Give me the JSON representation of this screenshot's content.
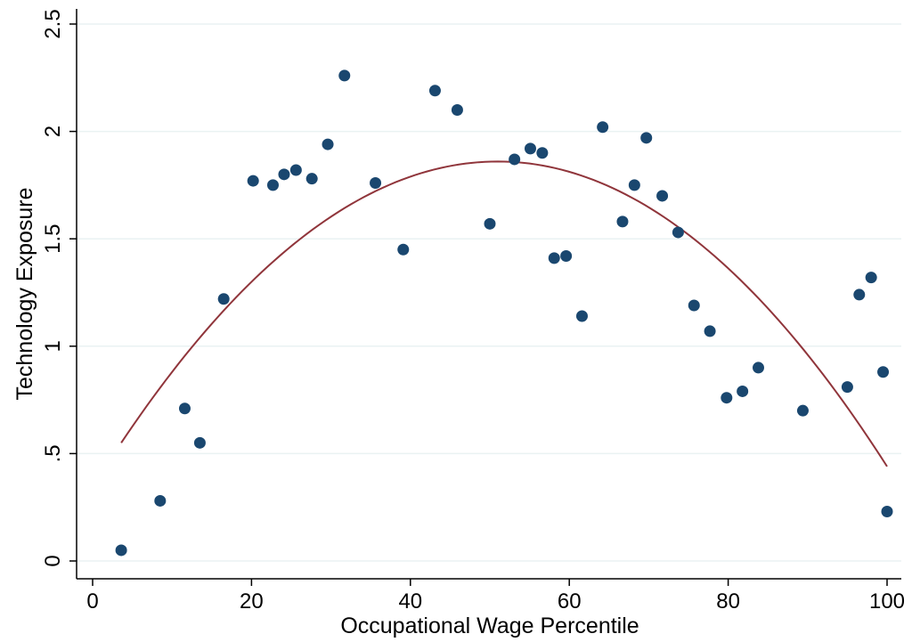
{
  "chart_data": {
    "type": "scatter",
    "title": "",
    "xlabel": "Occupational Wage Percentile",
    "ylabel": "Technology Exposure",
    "xlim": [
      0,
      100
    ],
    "ylim": [
      0,
      2.5
    ],
    "x_ticks": [
      0,
      20,
      40,
      60,
      80,
      100
    ],
    "x_tick_labels": [
      "0",
      "20",
      "40",
      "60",
      "80",
      "100"
    ],
    "y_ticks": [
      0,
      0.5,
      1,
      1.5,
      2,
      2.5
    ],
    "y_tick_labels": [
      "0",
      ".5",
      "1",
      "1.5",
      "2",
      "2.5"
    ],
    "grid": "horizontal",
    "legend": "none",
    "colors": {
      "points": "#1a476f",
      "fit_line": "#90353b",
      "grid": "#eaf2f3"
    },
    "points": [
      {
        "x": 3.6,
        "y": 0.05
      },
      {
        "x": 8.5,
        "y": 0.28
      },
      {
        "x": 11.6,
        "y": 0.71
      },
      {
        "x": 13.5,
        "y": 0.55
      },
      {
        "x": 16.5,
        "y": 1.22
      },
      {
        "x": 20.2,
        "y": 1.77
      },
      {
        "x": 22.7,
        "y": 1.75
      },
      {
        "x": 24.1,
        "y": 1.8
      },
      {
        "x": 25.6,
        "y": 1.82
      },
      {
        "x": 27.6,
        "y": 1.78
      },
      {
        "x": 29.6,
        "y": 1.94
      },
      {
        "x": 31.7,
        "y": 2.26
      },
      {
        "x": 35.6,
        "y": 1.76
      },
      {
        "x": 39.1,
        "y": 1.45
      },
      {
        "x": 43.1,
        "y": 2.19
      },
      {
        "x": 45.9,
        "y": 2.1
      },
      {
        "x": 50.0,
        "y": 1.57
      },
      {
        "x": 53.1,
        "y": 1.87
      },
      {
        "x": 55.1,
        "y": 1.92
      },
      {
        "x": 56.6,
        "y": 1.9
      },
      {
        "x": 58.1,
        "y": 1.41
      },
      {
        "x": 59.6,
        "y": 1.42
      },
      {
        "x": 61.6,
        "y": 1.14
      },
      {
        "x": 64.2,
        "y": 2.02
      },
      {
        "x": 66.7,
        "y": 1.58
      },
      {
        "x": 68.2,
        "y": 1.75
      },
      {
        "x": 69.7,
        "y": 1.97
      },
      {
        "x": 71.7,
        "y": 1.7
      },
      {
        "x": 73.7,
        "y": 1.53
      },
      {
        "x": 75.7,
        "y": 1.19
      },
      {
        "x": 77.7,
        "y": 1.07
      },
      {
        "x": 79.8,
        "y": 0.76
      },
      {
        "x": 81.8,
        "y": 0.79
      },
      {
        "x": 83.8,
        "y": 0.9
      },
      {
        "x": 89.4,
        "y": 0.7
      },
      {
        "x": 95.0,
        "y": 0.81
      },
      {
        "x": 96.5,
        "y": 1.24
      },
      {
        "x": 98.0,
        "y": 1.32
      },
      {
        "x": 99.5,
        "y": 0.88
      },
      {
        "x": 100.0,
        "y": 0.23
      }
    ],
    "fit": {
      "type": "quadratic",
      "x_start": 3.6,
      "x_end": 100.0,
      "y_start": 0.55,
      "y_peak": 1.86,
      "x_peak": 51.0,
      "y_end": 0.44
    }
  }
}
